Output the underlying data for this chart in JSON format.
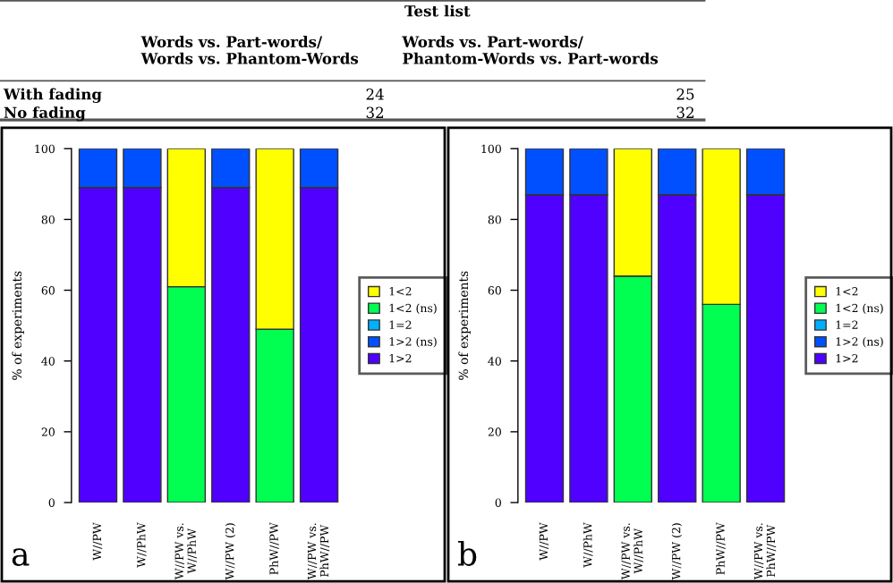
{
  "chart_data": [
    {
      "type": "other",
      "annotations": [
        "Test list",
        "Words vs. Part-words/\nWords vs. Phantom-Words",
        "Words vs. Part-words/\nPhantom-Words vs. Part-words",
        "With fading",
        "24",
        "25",
        "No fading",
        "32",
        "32"
      ]
    },
    {
      "type": "bar",
      "stacked": true,
      "ylabel": "% of experiments",
      "ylim": [
        0,
        100
      ],
      "yticks": [
        0,
        20,
        40,
        60,
        80,
        100
      ],
      "legend": "right",
      "grid": false,
      "categories": [
        "W//PW",
        "W//PhW",
        "W//PW vs.\nW//PhW",
        "W//PW (2)",
        "PhW//PW",
        "W//PW vs.\nPhW//PW"
      ],
      "series": [
        {
          "name": "1>2",
          "color": "#5000ff",
          "values": [
            89,
            89,
            null,
            89,
            null,
            89
          ]
        },
        {
          "name": "1>2 (ns)",
          "color": "#0050ff",
          "values": [
            11,
            11,
            null,
            11,
            null,
            11
          ]
        },
        {
          "name": "1=2",
          "color": "#00b0ff",
          "values": [
            null,
            null,
            null,
            null,
            null,
            null
          ]
        },
        {
          "name": "1<2 (ns)",
          "color": "#00ff50",
          "values": [
            null,
            null,
            61,
            null,
            49,
            null
          ]
        },
        {
          "name": "1<2",
          "color": "#ffff00",
          "values": [
            null,
            null,
            39,
            null,
            51,
            null
          ]
        }
      ],
      "annotations": [
        "a"
      ]
    },
    {
      "type": "bar",
      "stacked": true,
      "ylabel": "% of experiments",
      "ylim": [
        0,
        100
      ],
      "yticks": [
        0,
        20,
        40,
        60,
        80,
        100
      ],
      "legend": "right",
      "grid": false,
      "categories": [
        "W//PW",
        "W//PhW",
        "W//PW vs.\nW//PhW",
        "W//PW (2)",
        "PhW//PW",
        "W//PW vs.\nPhW//PW"
      ],
      "series": [
        {
          "name": "1>2",
          "color": "#5000ff",
          "values": [
            87,
            87,
            null,
            87,
            null,
            87
          ]
        },
        {
          "name": "1>2 (ns)",
          "color": "#0050ff",
          "values": [
            13,
            13,
            null,
            13,
            null,
            13
          ]
        },
        {
          "name": "1=2",
          "color": "#00b0ff",
          "values": [
            null,
            null,
            null,
            null,
            null,
            null
          ]
        },
        {
          "name": "1<2 (ns)",
          "color": "#00ff50",
          "values": [
            null,
            null,
            64,
            null,
            56,
            null
          ]
        },
        {
          "name": "1<2",
          "color": "#ffff00",
          "values": [
            null,
            null,
            36,
            null,
            44,
            null
          ]
        }
      ],
      "annotations": [
        "b"
      ]
    }
  ]
}
